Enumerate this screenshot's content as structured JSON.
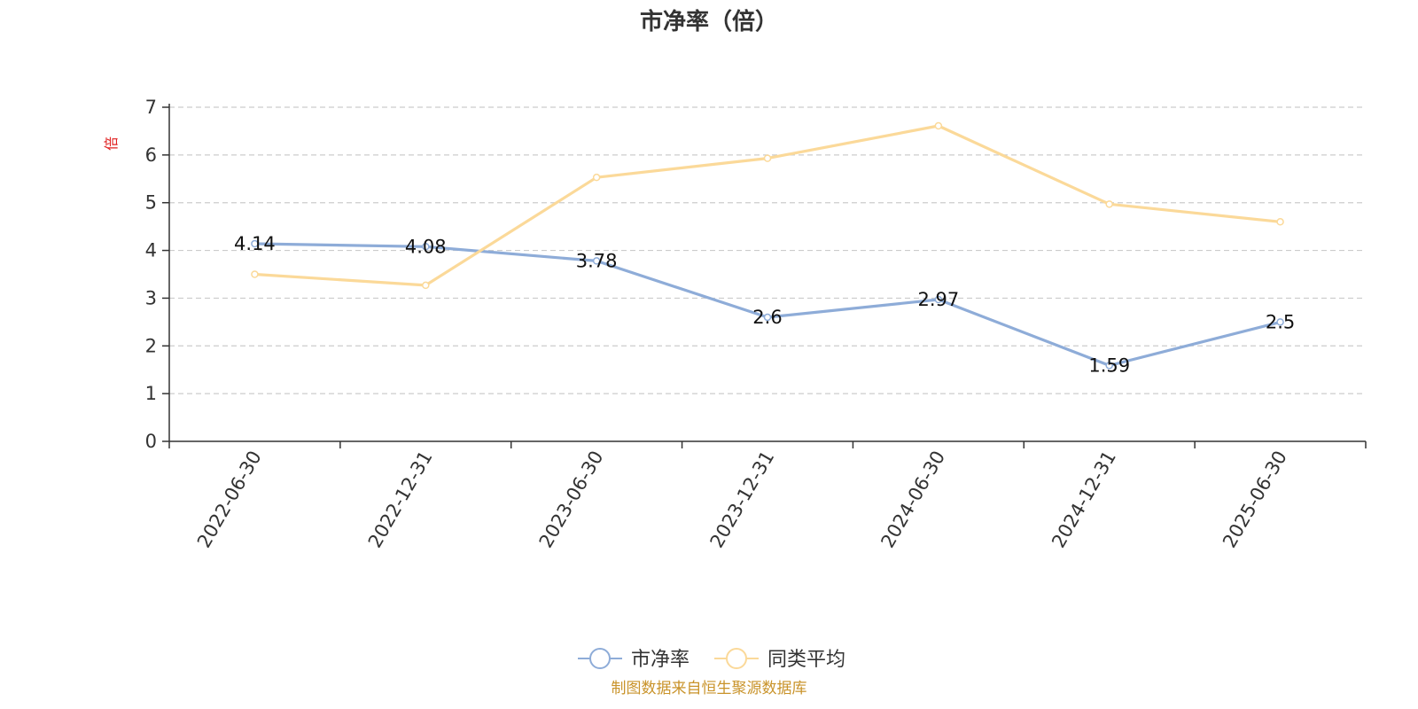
{
  "chart_data": {
    "type": "line",
    "title": "市净率（倍）",
    "ylabel": "倍",
    "xlabel": "",
    "categories": [
      "2022-06-30",
      "2022-12-31",
      "2023-06-30",
      "2023-12-31",
      "2024-06-30",
      "2024-12-31",
      "2025-06-30"
    ],
    "ylim": [
      0,
      7
    ],
    "yticks": [
      0,
      1,
      2,
      3,
      4,
      5,
      6,
      7
    ],
    "grid": true,
    "legend_position": "bottom-center",
    "series": [
      {
        "name": "市净率",
        "values": [
          4.14,
          4.08,
          3.78,
          2.6,
          2.97,
          1.59,
          2.5
        ],
        "color": "#8eacd8",
        "data_labels": [
          "4.14",
          "4.08",
          "3.78",
          "2.6",
          "2.97",
          "1.59",
          "2.5"
        ]
      },
      {
        "name": "同类平均",
        "values": [
          3.5,
          3.27,
          5.53,
          5.93,
          6.61,
          4.97,
          4.6
        ],
        "color": "#fbd999"
      }
    ]
  },
  "source_note": "制图数据来自恒生聚源数据库",
  "colors": {
    "axis": "#333333",
    "grid": "#cccccc",
    "ylabel": "#e02020",
    "source": "#c9932a"
  }
}
